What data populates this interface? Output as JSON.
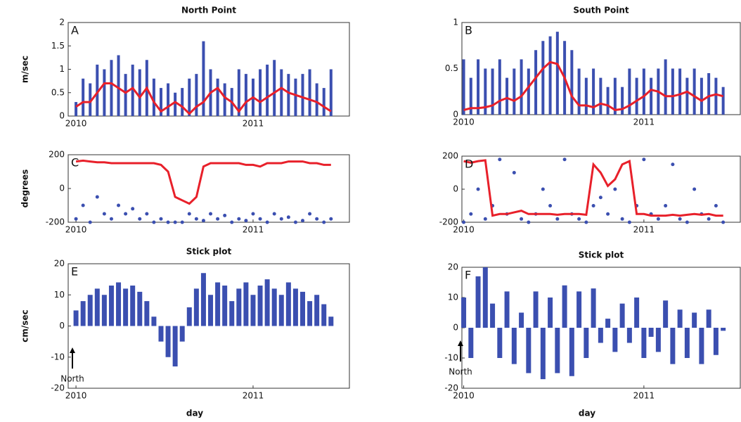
{
  "chart_data": [
    {
      "type": "line",
      "title": "North Point",
      "panel_label": "A",
      "ylabel": "m/sec",
      "x": [
        2010.0,
        2010.04,
        2010.08,
        2010.12,
        2010.16,
        2010.2,
        2010.24,
        2010.28,
        2010.32,
        2010.36,
        2010.4,
        2010.44,
        2010.48,
        2010.52,
        2010.56,
        2010.6,
        2010.64,
        2010.68,
        2010.72,
        2010.76,
        2010.8,
        2010.84,
        2010.88,
        2010.92,
        2010.96,
        2011.0,
        2011.04,
        2011.08,
        2011.12,
        2011.16,
        2011.2,
        2011.24,
        2011.28,
        2011.32,
        2011.36,
        2011.4,
        2011.44
      ],
      "xlim": [
        2009.956,
        2011.544
      ],
      "xticks": [
        2010,
        2011
      ],
      "ylim": [
        0,
        2
      ],
      "yticks": [
        0,
        0.5,
        1,
        1.5,
        2
      ],
      "series": [
        {
          "color": "#3b4fb0",
          "style": "spikes",
          "values": [
            0.3,
            0.8,
            0.7,
            1.1,
            1.0,
            1.2,
            1.3,
            0.9,
            1.1,
            1.0,
            1.2,
            0.8,
            0.6,
            0.7,
            0.5,
            0.6,
            0.8,
            0.9,
            1.6,
            1.0,
            0.8,
            0.7,
            0.6,
            1.0,
            0.9,
            0.8,
            1.0,
            1.1,
            1.2,
            1.0,
            0.9,
            0.8,
            0.9,
            1.0,
            0.7,
            0.6,
            1.0
          ]
        },
        {
          "color": "#e8202a",
          "style": "line",
          "values": [
            0.2,
            0.3,
            0.3,
            0.5,
            0.7,
            0.7,
            0.6,
            0.5,
            0.6,
            0.4,
            0.6,
            0.3,
            0.1,
            0.2,
            0.3,
            0.2,
            0.05,
            0.2,
            0.3,
            0.5,
            0.6,
            0.4,
            0.3,
            0.1,
            0.3,
            0.4,
            0.3,
            0.4,
            0.5,
            0.6,
            0.5,
            0.45,
            0.4,
            0.35,
            0.3,
            0.2,
            0.1
          ]
        }
      ]
    },
    {
      "type": "line",
      "title": "South Point",
      "panel_label": "B",
      "x": [
        2010.0,
        2010.04,
        2010.08,
        2010.12,
        2010.16,
        2010.2,
        2010.24,
        2010.28,
        2010.32,
        2010.36,
        2010.4,
        2010.44,
        2010.48,
        2010.52,
        2010.56,
        2010.6,
        2010.64,
        2010.68,
        2010.72,
        2010.76,
        2010.8,
        2010.84,
        2010.88,
        2010.92,
        2010.96,
        2011.0,
        2011.04,
        2011.08,
        2011.12,
        2011.16,
        2011.2,
        2011.24,
        2011.28,
        2011.32,
        2011.36,
        2011.4,
        2011.44
      ],
      "xlim": [
        2009.99,
        2011.535
      ],
      "xticks": [
        2010,
        2011
      ],
      "ylim": [
        0,
        1
      ],
      "yticks": [
        0,
        0.5,
        1
      ],
      "series": [
        {
          "color": "#3b4fb0",
          "style": "spikes",
          "values": [
            0.6,
            0.4,
            0.6,
            0.5,
            0.5,
            0.6,
            0.4,
            0.5,
            0.6,
            0.5,
            0.7,
            0.8,
            0.85,
            0.9,
            0.8,
            0.7,
            0.5,
            0.4,
            0.5,
            0.4,
            0.3,
            0.4,
            0.3,
            0.5,
            0.4,
            0.5,
            0.4,
            0.5,
            0.6,
            0.5,
            0.5,
            0.4,
            0.5,
            0.4,
            0.45,
            0.4,
            0.3
          ]
        },
        {
          "color": "#e8202a",
          "style": "line",
          "values": [
            0.05,
            0.07,
            0.07,
            0.08,
            0.1,
            0.15,
            0.18,
            0.15,
            0.2,
            0.3,
            0.4,
            0.5,
            0.57,
            0.55,
            0.4,
            0.2,
            0.1,
            0.1,
            0.08,
            0.12,
            0.1,
            0.05,
            0.06,
            0.1,
            0.15,
            0.2,
            0.27,
            0.25,
            0.2,
            0.2,
            0.22,
            0.25,
            0.2,
            0.15,
            0.2,
            0.22,
            0.2
          ]
        }
      ]
    },
    {
      "type": "line",
      "panel_label": "C",
      "ylabel": "degrees",
      "x": [
        2010.0,
        2010.04,
        2010.08,
        2010.12,
        2010.16,
        2010.2,
        2010.24,
        2010.28,
        2010.32,
        2010.36,
        2010.4,
        2010.44,
        2010.48,
        2010.52,
        2010.56,
        2010.6,
        2010.64,
        2010.68,
        2010.72,
        2010.76,
        2010.8,
        2010.84,
        2010.88,
        2010.92,
        2010.96,
        2011.0,
        2011.04,
        2011.08,
        2011.12,
        2011.16,
        2011.2,
        2011.24,
        2011.28,
        2011.32,
        2011.36,
        2011.4,
        2011.44
      ],
      "xlim": [
        2009.956,
        2011.544
      ],
      "xticks": [
        2010,
        2011
      ],
      "ylim": [
        -200,
        200
      ],
      "yticks": [
        -200,
        0,
        200
      ],
      "series": [
        {
          "color": "#3b4fb0",
          "style": "dots",
          "values": [
            -180,
            -100,
            -200,
            -50,
            -150,
            -180,
            -100,
            -150,
            -120,
            -180,
            -150,
            -200,
            -180,
            -200,
            -200,
            -200,
            -150,
            -180,
            -190,
            -150,
            -180,
            -160,
            -200,
            -180,
            -190,
            -150,
            -180,
            -200,
            -150,
            -180,
            -170,
            -200,
            -190,
            -150,
            -180,
            -200,
            -180
          ]
        },
        {
          "color": "#e8202a",
          "style": "line",
          "values": [
            160,
            165,
            160,
            155,
            155,
            150,
            150,
            150,
            150,
            150,
            150,
            150,
            140,
            100,
            -50,
            -70,
            -90,
            -50,
            130,
            150,
            150,
            150,
            150,
            150,
            140,
            140,
            130,
            150,
            150,
            150,
            160,
            160,
            160,
            150,
            150,
            140,
            140
          ]
        }
      ]
    },
    {
      "type": "line",
      "panel_label": "D",
      "x": [
        2010.0,
        2010.04,
        2010.08,
        2010.12,
        2010.16,
        2010.2,
        2010.24,
        2010.28,
        2010.32,
        2010.36,
        2010.4,
        2010.44,
        2010.48,
        2010.52,
        2010.56,
        2010.6,
        2010.64,
        2010.68,
        2010.72,
        2010.76,
        2010.8,
        2010.84,
        2010.88,
        2010.92,
        2010.96,
        2011.0,
        2011.04,
        2011.08,
        2011.12,
        2011.16,
        2011.2,
        2011.24,
        2011.28,
        2011.32,
        2011.36,
        2011.4,
        2011.44
      ],
      "xlim": [
        2009.99,
        2011.535
      ],
      "xticks": [
        2010,
        2011
      ],
      "ylim": [
        -200,
        200
      ],
      "yticks": [
        -200,
        0,
        200
      ],
      "series": [
        {
          "color": "#3b4fb0",
          "style": "dots",
          "values": [
            -200,
            -150,
            0,
            -180,
            -100,
            180,
            -150,
            100,
            -180,
            -200,
            -150,
            0,
            -100,
            -180,
            180,
            -150,
            -180,
            -200,
            -100,
            -50,
            -150,
            0,
            -180,
            -200,
            -100,
            180,
            -150,
            -180,
            -100,
            150,
            -180,
            -200,
            0,
            -150,
            -180,
            -100,
            -200
          ]
        },
        {
          "color": "#e8202a",
          "style": "line",
          "values": [
            170,
            160,
            170,
            175,
            -160,
            -150,
            -150,
            -140,
            -130,
            -150,
            -150,
            -150,
            -150,
            -155,
            -150,
            -150,
            -150,
            -155,
            150,
            100,
            20,
            60,
            150,
            170,
            -150,
            -150,
            -160,
            -160,
            -160,
            -155,
            -160,
            -155,
            -150,
            -155,
            -150,
            -160,
            -160
          ]
        }
      ]
    },
    {
      "type": "stick",
      "title": "Stick plot",
      "panel_label": "E",
      "ylabel": "cm/sec",
      "xlabel": "day",
      "annotation": "North",
      "x": [
        2010.0,
        2010.04,
        2010.08,
        2010.12,
        2010.16,
        2010.2,
        2010.24,
        2010.28,
        2010.32,
        2010.36,
        2010.4,
        2010.44,
        2010.48,
        2010.52,
        2010.56,
        2010.6,
        2010.64,
        2010.68,
        2010.72,
        2010.76,
        2010.8,
        2010.84,
        2010.88,
        2010.92,
        2010.96,
        2011.0,
        2011.04,
        2011.08,
        2011.12,
        2011.16,
        2011.2,
        2011.24,
        2011.28,
        2011.32,
        2011.36,
        2011.4,
        2011.44
      ],
      "xlim": [
        2009.956,
        2011.544
      ],
      "xticks": [
        2010,
        2011
      ],
      "ylim": [
        -20,
        20
      ],
      "yticks": [
        -20,
        -10,
        0,
        10,
        20
      ],
      "series": [
        {
          "color": "#3b4fb0",
          "style": "sticks",
          "values": [
            5,
            8,
            10,
            12,
            10,
            13,
            14,
            12,
            13,
            11,
            8,
            3,
            -5,
            -10,
            -13,
            -5,
            6,
            12,
            17,
            10,
            14,
            13,
            8,
            12,
            14,
            10,
            13,
            15,
            12,
            10,
            14,
            12,
            11,
            8,
            10,
            7,
            3
          ]
        }
      ]
    },
    {
      "type": "stick",
      "title": "Stick plot",
      "panel_label": "F",
      "xlabel": "day",
      "annotation": "North",
      "x": [
        2010.0,
        2010.04,
        2010.08,
        2010.12,
        2010.16,
        2010.2,
        2010.24,
        2010.28,
        2010.32,
        2010.36,
        2010.4,
        2010.44,
        2010.48,
        2010.52,
        2010.56,
        2010.6,
        2010.64,
        2010.68,
        2010.72,
        2010.76,
        2010.8,
        2010.84,
        2010.88,
        2010.92,
        2010.96,
        2011.0,
        2011.04,
        2011.08,
        2011.12,
        2011.16,
        2011.2,
        2011.24,
        2011.28,
        2011.32,
        2011.36,
        2011.4,
        2011.44
      ],
      "xlim": [
        2009.99,
        2011.535
      ],
      "xticks": [
        2010,
        2011
      ],
      "ylim": [
        -20,
        20
      ],
      "yticks": [
        -20,
        -10,
        0,
        10,
        20
      ],
      "series": [
        {
          "color": "#3b4fb0",
          "style": "sticks",
          "values": [
            10,
            -10,
            17,
            20,
            8,
            -10,
            12,
            -12,
            5,
            -15,
            12,
            -17,
            10,
            -15,
            14,
            -16,
            12,
            -10,
            13,
            -5,
            3,
            -8,
            8,
            -5,
            10,
            -10,
            -3,
            -8,
            9,
            -12,
            6,
            -10,
            5,
            -12,
            6,
            -9,
            -1
          ]
        }
      ]
    }
  ]
}
